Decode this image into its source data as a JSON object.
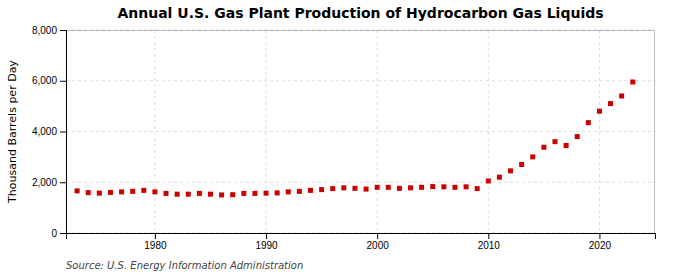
{
  "chart_data": {
    "type": "scatter",
    "title": "Annual U.S. Gas Plant Production of Hydrocarbon Gas Liquids",
    "ylabel": "Thousand Barrels per Day",
    "source": "Source: U.S. Energy Information Administration",
    "x": [
      1973,
      1974,
      1975,
      1976,
      1977,
      1978,
      1979,
      1980,
      1981,
      1982,
      1983,
      1984,
      1985,
      1986,
      1987,
      1988,
      1989,
      1990,
      1991,
      1992,
      1993,
      1994,
      1995,
      1996,
      1997,
      1998,
      1999,
      2000,
      2001,
      2002,
      2003,
      2004,
      2005,
      2006,
      2007,
      2008,
      2009,
      2010,
      2011,
      2012,
      2013,
      2014,
      2015,
      2016,
      2017,
      2018,
      2019,
      2020,
      2021,
      2022,
      2023
    ],
    "values": [
      1660,
      1590,
      1570,
      1600,
      1620,
      1640,
      1680,
      1620,
      1560,
      1530,
      1530,
      1560,
      1530,
      1500,
      1510,
      1560,
      1560,
      1570,
      1580,
      1620,
      1640,
      1680,
      1710,
      1750,
      1780,
      1760,
      1730,
      1800,
      1800,
      1760,
      1780,
      1800,
      1830,
      1820,
      1800,
      1820,
      1750,
      2050,
      2200,
      2450,
      2700,
      3000,
      3380,
      3600,
      3450,
      3800,
      4350,
      4800,
      5100,
      5400,
      5950
    ],
    "color": "#cc0000",
    "marker": "square",
    "xlim": [
      1972,
      2025
    ],
    "ylim": [
      0,
      8000
    ],
    "xticks": [
      1980,
      1990,
      2000,
      2010,
      2020
    ],
    "yticks": [
      0,
      {
        "value": 2000,
        "label": "2,000"
      },
      {
        "value": 4000,
        "label": "4,000"
      },
      {
        "value": 6000,
        "label": "6,000"
      },
      {
        "value": 8000,
        "label": "8,000"
      }
    ],
    "grid": true
  }
}
